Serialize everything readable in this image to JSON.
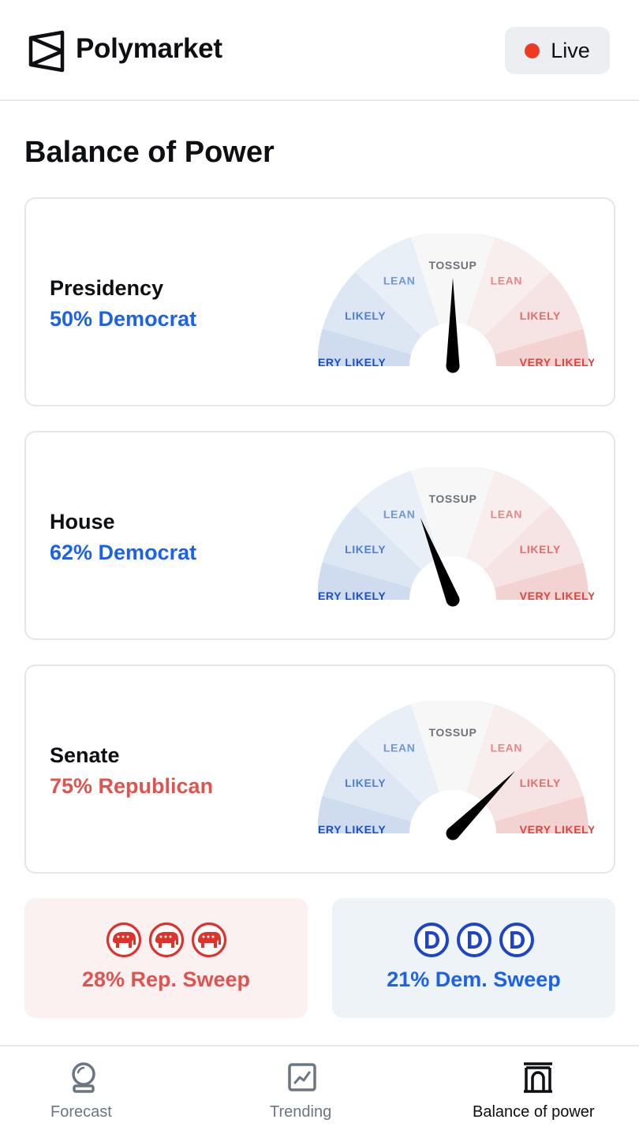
{
  "app": {
    "name": "Polymarket",
    "live_label": "Live"
  },
  "page": {
    "title": "Balance of Power"
  },
  "gauge_labels": {
    "tossup": "TOSSUP",
    "lean": "LEAN",
    "likely": "LIKELY",
    "very_likely": "VERY LIKELY"
  },
  "races": [
    {
      "name": "Presidency",
      "value_text": "50% Democrat",
      "party": "Democrat",
      "probability": 50
    },
    {
      "name": "House",
      "value_text": "62% Democrat",
      "party": "Democrat",
      "probability": 62
    },
    {
      "name": "Senate",
      "value_text": "75% Republican",
      "party": "Republican",
      "probability": 75
    }
  ],
  "sweeps": {
    "republican": {
      "label": "28% Rep. Sweep",
      "icon": "elephant-icon"
    },
    "democrat": {
      "label": "21% Dem. Sweep",
      "icon": "democrat-d-icon"
    }
  },
  "nav": {
    "items": [
      {
        "label": "Forecast",
        "icon": "crystal-ball-icon",
        "active": false
      },
      {
        "label": "Trending",
        "icon": "trend-chart-icon",
        "active": false
      },
      {
        "label": "Balance of power",
        "icon": "capitol-icon",
        "active": true
      }
    ]
  },
  "colors": {
    "democrat": "#1c62e8",
    "republican": "#e0534f",
    "rep_sweep_bg": "#fbf1f1",
    "dem_sweep_bg": "#eef3f8",
    "live_dot": "#ee3a24",
    "nav_inactive": "#6b7683",
    "nav_active": "#0d0f12"
  }
}
